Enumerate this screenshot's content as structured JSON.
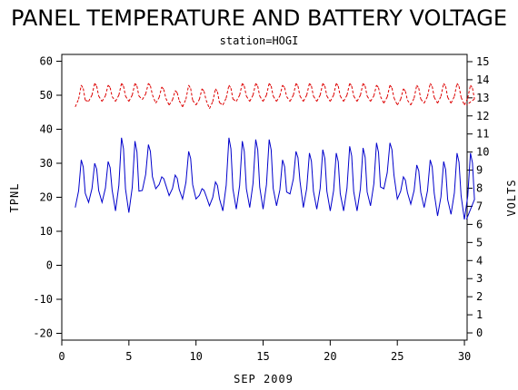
{
  "chart_data": {
    "type": "line",
    "title": "PANEL TEMPERATURE AND BATTERY VOLTAGE",
    "subtitle": "station=HOGI",
    "xlabel": "SEP 2009",
    "ylabel_left": "TPNL",
    "ylabel_right": "VOLTS",
    "xlim": [
      0,
      30.2
    ],
    "x_ticks": [
      0,
      5,
      10,
      15,
      20,
      25,
      30
    ],
    "ylim_left": [
      -22,
      62
    ],
    "y_ticks_left": [
      -20,
      -10,
      0,
      10,
      20,
      30,
      40,
      50,
      60
    ],
    "ylim_right": [
      -0.4,
      15.4
    ],
    "y_ticks_right": [
      0,
      1,
      2,
      3,
      4,
      5,
      6,
      7,
      8,
      9,
      10,
      11,
      12,
      13,
      14,
      15
    ],
    "grid": false,
    "series": [
      {
        "axis": "left",
        "color": "#0000cc",
        "daily_peaks": [
          [
            1,
            31
          ],
          [
            2,
            30
          ],
          [
            3,
            30.5
          ],
          [
            4,
            37.5
          ],
          [
            5,
            36.5
          ],
          [
            6,
            35.5
          ],
          [
            7,
            26
          ],
          [
            8,
            26.5
          ],
          [
            9,
            33.5
          ],
          [
            10,
            22.5
          ],
          [
            11,
            24.5
          ],
          [
            12,
            37.5
          ],
          [
            13,
            36.5
          ],
          [
            14,
            37
          ],
          [
            15,
            37
          ],
          [
            16,
            31
          ],
          [
            17,
            33.5
          ],
          [
            18,
            33
          ],
          [
            19,
            34
          ],
          [
            20,
            33
          ],
          [
            21,
            35
          ],
          [
            22,
            34.5
          ],
          [
            23,
            36
          ],
          [
            24,
            36
          ],
          [
            25,
            26
          ],
          [
            26,
            29.5
          ],
          [
            27,
            31
          ],
          [
            28,
            30.5
          ],
          [
            29,
            33
          ],
          [
            30,
            33
          ]
        ],
        "daily_lows": [
          [
            1,
            17
          ],
          [
            2,
            18.5
          ],
          [
            3,
            18.5
          ],
          [
            4,
            16
          ],
          [
            5,
            15.5
          ],
          [
            6,
            22
          ],
          [
            7,
            22.5
          ],
          [
            8,
            20.5
          ],
          [
            9,
            19.5
          ],
          [
            10,
            19.5
          ],
          [
            11,
            17.5
          ],
          [
            12,
            16
          ],
          [
            13,
            16.5
          ],
          [
            14,
            17
          ],
          [
            15,
            16.5
          ],
          [
            16,
            17.5
          ],
          [
            17,
            21
          ],
          [
            18,
            17
          ],
          [
            19,
            16.5
          ],
          [
            20,
            16
          ],
          [
            21,
            16
          ],
          [
            22,
            16
          ],
          [
            23,
            17.5
          ],
          [
            24,
            22.5
          ],
          [
            25,
            19.5
          ],
          [
            26,
            18
          ],
          [
            27,
            17
          ],
          [
            28,
            14.5
          ],
          [
            29,
            15
          ],
          [
            30,
            13.5
          ]
        ]
      },
      {
        "axis": "right",
        "color": "#dd0000",
        "daily_peaks": [
          [
            1,
            13.7
          ],
          [
            2,
            13.8
          ],
          [
            3,
            13.7
          ],
          [
            4,
            13.8
          ],
          [
            5,
            13.8
          ],
          [
            6,
            13.8
          ],
          [
            7,
            13.6
          ],
          [
            8,
            13.4
          ],
          [
            9,
            13.7
          ],
          [
            10,
            13.5
          ],
          [
            11,
            13.5
          ],
          [
            12,
            13.7
          ],
          [
            13,
            13.8
          ],
          [
            14,
            13.8
          ],
          [
            15,
            13.8
          ],
          [
            16,
            13.7
          ],
          [
            17,
            13.8
          ],
          [
            18,
            13.8
          ],
          [
            19,
            13.8
          ],
          [
            20,
            13.8
          ],
          [
            21,
            13.8
          ],
          [
            22,
            13.8
          ],
          [
            23,
            13.7
          ],
          [
            24,
            13.7
          ],
          [
            25,
            13.5
          ],
          [
            26,
            13.7
          ],
          [
            27,
            13.8
          ],
          [
            28,
            13.8
          ],
          [
            29,
            13.8
          ],
          [
            30,
            13.7
          ]
        ],
        "daily_lows": [
          [
            1,
            12.5
          ],
          [
            2,
            12.8
          ],
          [
            3,
            12.8
          ],
          [
            4,
            12.8
          ],
          [
            5,
            12.8
          ],
          [
            6,
            12.9
          ],
          [
            7,
            12.7
          ],
          [
            8,
            12.6
          ],
          [
            9,
            12.5
          ],
          [
            10,
            12.6
          ],
          [
            11,
            12.4
          ],
          [
            12,
            12.6
          ],
          [
            13,
            12.8
          ],
          [
            14,
            12.8
          ],
          [
            15,
            12.8
          ],
          [
            16,
            12.8
          ],
          [
            17,
            12.8
          ],
          [
            18,
            12.8
          ],
          [
            19,
            12.8
          ],
          [
            20,
            12.8
          ],
          [
            21,
            12.8
          ],
          [
            22,
            12.8
          ],
          [
            23,
            12.8
          ],
          [
            24,
            12.7
          ],
          [
            25,
            12.6
          ],
          [
            26,
            12.6
          ],
          [
            27,
            12.7
          ],
          [
            28,
            12.7
          ],
          [
            29,
            12.7
          ],
          [
            30,
            12.6
          ]
        ]
      }
    ]
  }
}
